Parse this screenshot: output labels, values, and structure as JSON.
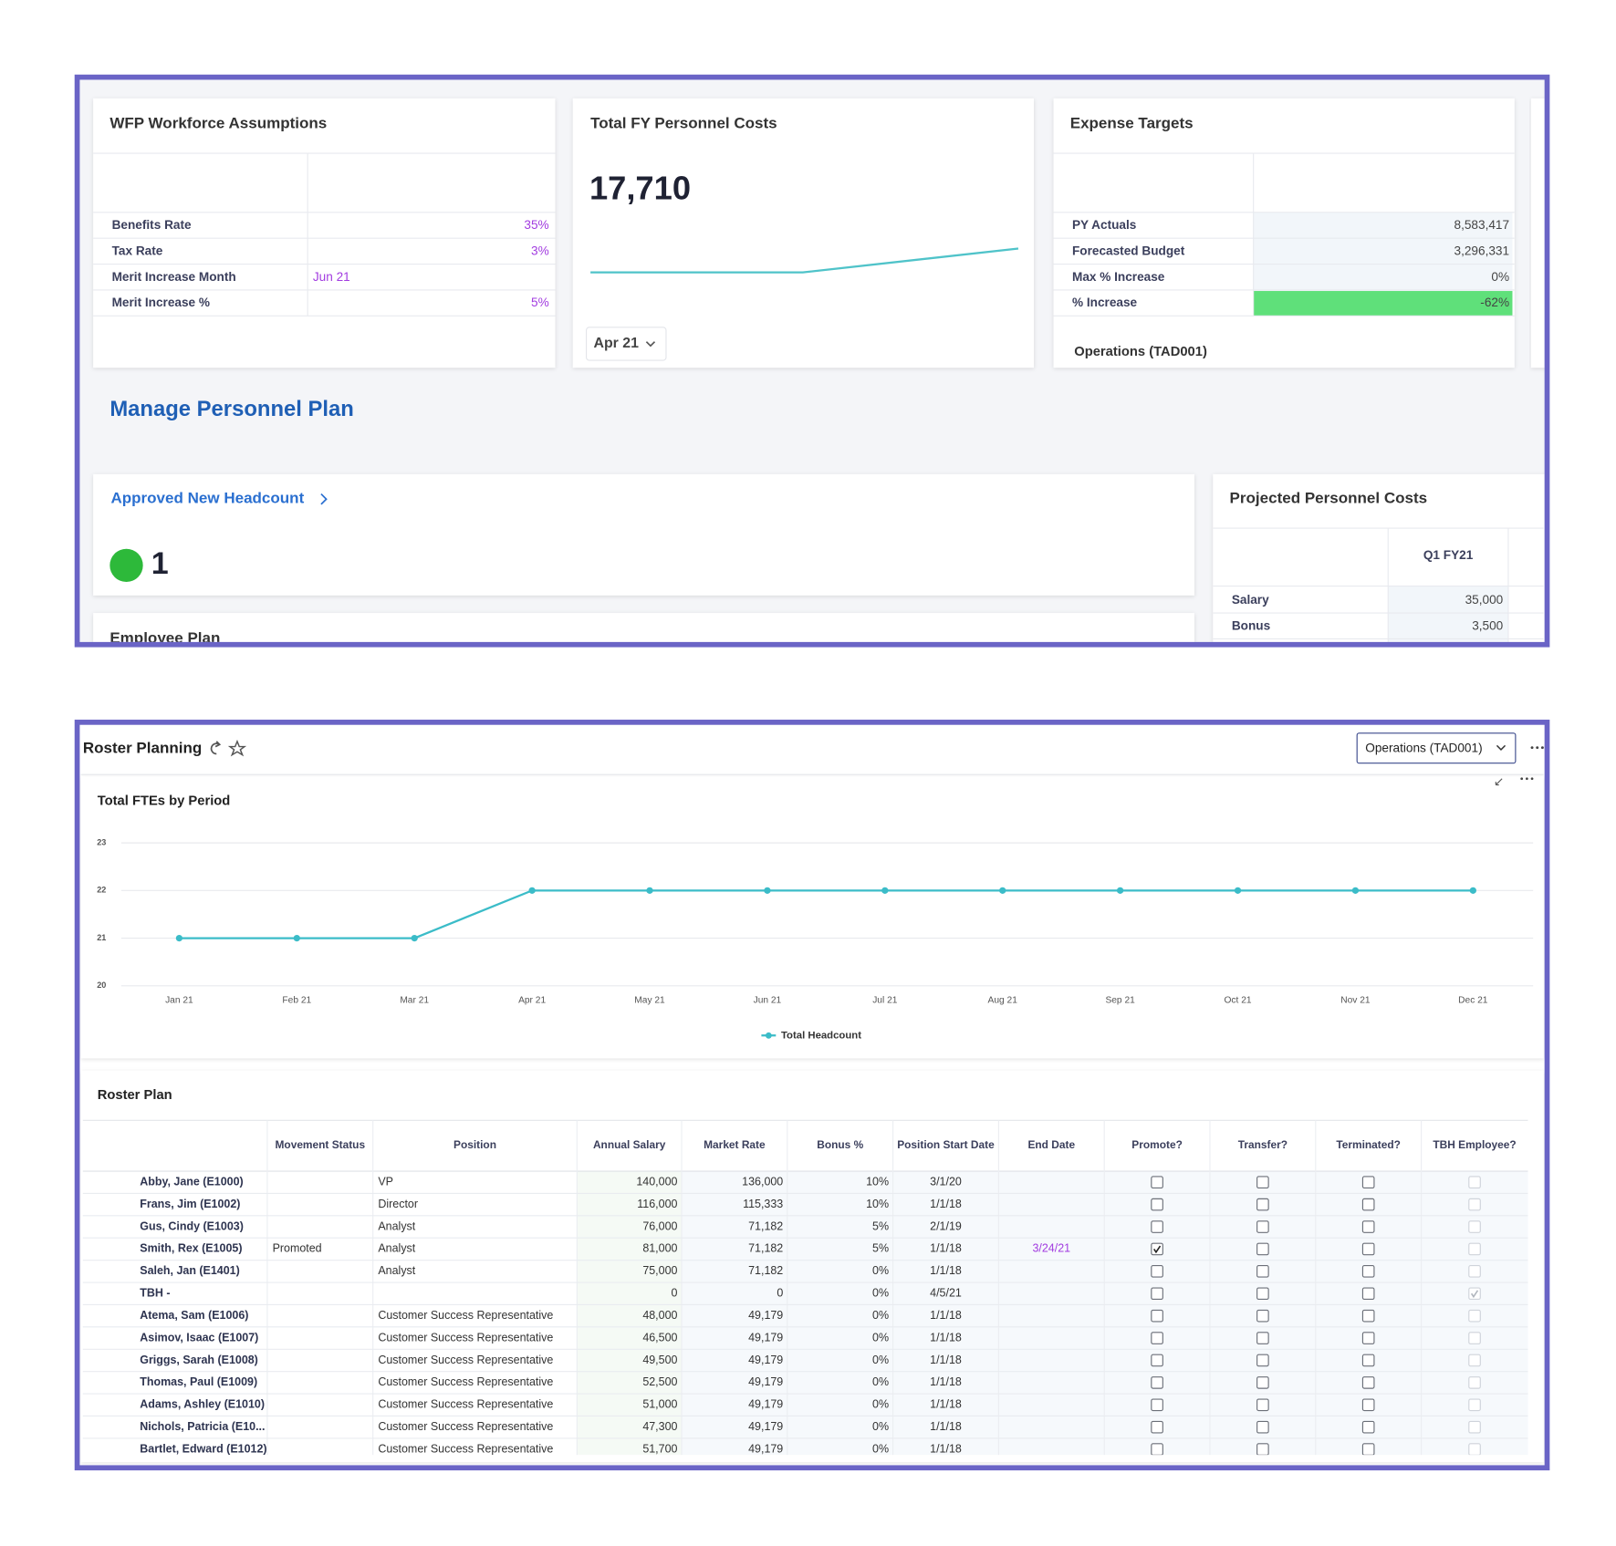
{
  "wfp": {
    "title": "WFP Workforce Assumptions",
    "rows": [
      [
        "Benefits Rate",
        "35%"
      ],
      [
        "Tax Rate",
        "3%"
      ],
      [
        "Merit Increase Month",
        "Jun 21"
      ],
      [
        "Merit Increase %",
        "5%"
      ]
    ]
  },
  "fy_costs": {
    "title": "Total FY Personnel Costs",
    "value": "17,710",
    "period": "Apr 21"
  },
  "expense": {
    "title": "Expense Targets",
    "rows": [
      [
        "PY Actuals",
        "8,583,417"
      ],
      [
        "Forecasted Budget",
        "3,296,331"
      ],
      [
        "Max % Increase",
        "0%"
      ],
      [
        "% Increase",
        "-62%"
      ]
    ],
    "footer": "Operations (TAD001)"
  },
  "section_title": "Manage Personnel Plan",
  "headcount": {
    "title": "Approved New Headcount",
    "value": "1"
  },
  "employee_plan": "Employee Plan",
  "projected": {
    "title": "Projected Personnel Costs",
    "column": "Q1 FY21",
    "rows": [
      [
        "Salary",
        "35,000"
      ],
      [
        "Bonus",
        "3,500"
      ]
    ]
  },
  "roster": {
    "title": "Roster Planning",
    "selector": "Operations (TAD001)"
  },
  "chart_data": {
    "type": "line",
    "title": "Total FTEs by Period",
    "x": [
      "Jan 21",
      "Feb 21",
      "Mar 21",
      "Apr 21",
      "May 21",
      "Jun 21",
      "Jul 21",
      "Aug 21",
      "Sep 21",
      "Oct 21",
      "Nov 21",
      "Dec 21"
    ],
    "series": [
      {
        "name": "Total Headcount",
        "color": "#3bbcc8",
        "values": [
          21,
          21,
          21,
          22,
          22,
          22,
          22,
          22,
          22,
          22,
          22,
          22
        ]
      }
    ],
    "ylim": [
      20,
      23
    ],
    "yticks": [
      20,
      21,
      22,
      23
    ],
    "grid": true,
    "legend": "bottom"
  },
  "roster_plan": {
    "title": "Roster Plan",
    "columns": [
      null,
      "Movement Status",
      "Position",
      "Annual Salary",
      "Market Rate",
      "Bonus %",
      "Position Start Date",
      "End Date",
      "Promote?",
      "Transfer?",
      "Terminated?",
      "TBH Employee?"
    ],
    "rows": [
      {
        "cells": [
          "Abby, Jane (E1000)",
          null,
          "VP",
          "140,000",
          "136,000",
          "10%",
          "3/1/20",
          null
        ],
        "checks": [
          false,
          false,
          false,
          false
        ]
      },
      {
        "cells": [
          "Frans, Jim (E1002)",
          null,
          "Director",
          "116,000",
          "115,333",
          "10%",
          "1/1/18",
          null
        ],
        "checks": [
          false,
          false,
          false,
          false
        ]
      },
      {
        "cells": [
          "Gus, Cindy (E1003)",
          null,
          "Analyst",
          "76,000",
          "71,182",
          "5%",
          "2/1/19",
          null
        ],
        "checks": [
          false,
          false,
          false,
          false
        ]
      },
      {
        "cells": [
          "Smith, Rex (E1005)",
          "Promoted",
          "Analyst",
          "81,000",
          "71,182",
          "5%",
          "1/1/18",
          "3/24/21"
        ],
        "checks": [
          true,
          false,
          false,
          false
        ]
      },
      {
        "cells": [
          "Saleh, Jan (E1401)",
          null,
          "Analyst",
          "75,000",
          "71,182",
          "0%",
          "1/1/18",
          null
        ],
        "checks": [
          false,
          false,
          false,
          false
        ]
      },
      {
        "cells": [
          "TBH -",
          null,
          null,
          "0",
          "0",
          "0%",
          "4/5/21",
          null
        ],
        "checks": [
          false,
          false,
          false,
          true
        ]
      },
      {
        "cells": [
          "Atema, Sam (E1006)",
          null,
          "Customer Success Representative",
          "48,000",
          "49,179",
          "0%",
          "1/1/18",
          null
        ],
        "checks": [
          false,
          false,
          false,
          false
        ]
      },
      {
        "cells": [
          "Asimov, Isaac (E1007)",
          null,
          "Customer Success Representative",
          "46,500",
          "49,179",
          "0%",
          "1/1/18",
          null
        ],
        "checks": [
          false,
          false,
          false,
          false
        ]
      },
      {
        "cells": [
          "Griggs, Sarah (E1008)",
          null,
          "Customer Success Representative",
          "49,500",
          "49,179",
          "0%",
          "1/1/18",
          null
        ],
        "checks": [
          false,
          false,
          false,
          false
        ]
      },
      {
        "cells": [
          "Thomas, Paul (E1009)",
          null,
          "Customer Success Representative",
          "52,500",
          "49,179",
          "0%",
          "1/1/18",
          null
        ],
        "checks": [
          false,
          false,
          false,
          false
        ]
      },
      {
        "cells": [
          "Adams, Ashley (E1010)",
          null,
          "Customer Success Representative",
          "51,000",
          "49,179",
          "0%",
          "1/1/18",
          null
        ],
        "checks": [
          false,
          false,
          false,
          false
        ]
      },
      {
        "cells": [
          "Nichols, Patricia (E10...",
          null,
          "Customer Success Representative",
          "47,300",
          "49,179",
          "0%",
          "1/1/18",
          null
        ],
        "checks": [
          false,
          false,
          false,
          false
        ]
      },
      {
        "cells": [
          "Bartlet, Edward (E1012)",
          null,
          "Customer Success Representative",
          "51,700",
          "49,179",
          "0%",
          "1/1/18",
          null
        ],
        "checks": [
          false,
          false,
          false,
          false
        ]
      }
    ]
  }
}
